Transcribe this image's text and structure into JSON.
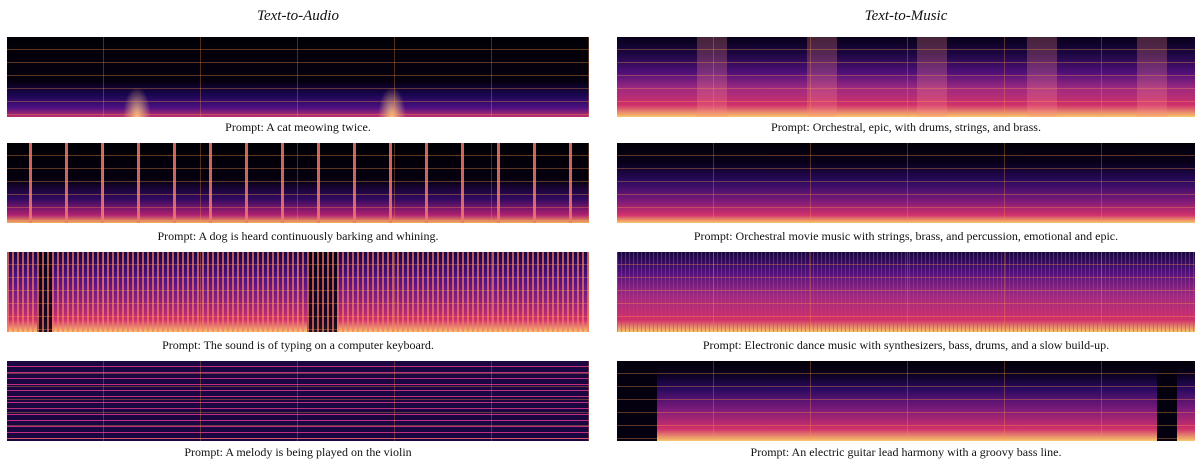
{
  "columns": [
    {
      "title": "Text-to-Audio",
      "prompts": [
        "Prompt: A cat meowing twice.",
        "Prompt: A dog is heard continuously barking and whining.",
        "Prompt: The sound is of typing on a computer keyboard.",
        "Prompt: A melody is being played on the violin"
      ]
    },
    {
      "title": "Text-to-Music",
      "prompts": [
        "Prompt: Orchestral, epic, with drums, strings, and brass.",
        "Prompt: Orchestral movie music with strings, brass, and percussion, emotional and epic.",
        "Prompt: Electronic dance music with synthesizers, bass, drums, and a slow build-up.",
        "Prompt: An electric guitar lead harmony with a groovy bass line."
      ]
    }
  ]
}
